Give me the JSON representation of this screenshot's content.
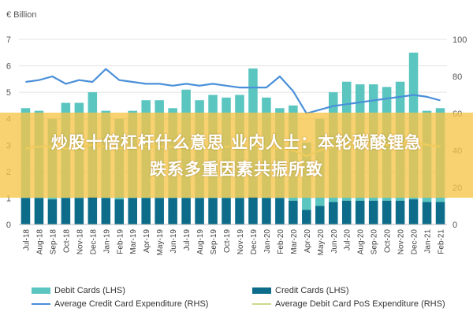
{
  "chart_data": {
    "type": "bar",
    "unit_label": "€ Billion",
    "ylim_left": [
      0,
      7
    ],
    "ylim_right": [
      0,
      100
    ],
    "left_ticks": [
      "0",
      "1",
      "2",
      "3",
      "4",
      "5",
      "6",
      "7"
    ],
    "right_ticks": [
      "0",
      "20",
      "40",
      "60",
      "80",
      "100"
    ],
    "categories": [
      "Jul-18",
      "Aug-18",
      "Sep-18",
      "Oct-18",
      "Nov-18",
      "Dec-18",
      "Jan-19",
      "Feb-19",
      "Mar-19",
      "Apr-19",
      "May-19",
      "Jun-19",
      "Jul-19",
      "Aug-19",
      "Sep-19",
      "Oct-19",
      "Nov-19",
      "Dec-19",
      "Jan-20",
      "Feb-20",
      "Mar-20",
      "Apr-20",
      "May-20",
      "Jun-20",
      "Jul-20",
      "Aug-20",
      "Sep-20",
      "Oct-20",
      "Nov-20",
      "Dec-20",
      "Jan-21",
      "Feb-21"
    ],
    "series": [
      {
        "name": "Debit Cards (LHS)",
        "type": "bar",
        "axis": "left",
        "color": "#5bc6c0",
        "values": [
          4.4,
          4.3,
          4.0,
          4.6,
          4.6,
          5.0,
          4.3,
          4.0,
          4.3,
          4.7,
          4.7,
          4.4,
          5.1,
          4.7,
          4.9,
          4.8,
          4.9,
          5.9,
          4.8,
          4.4,
          4.5,
          3.1,
          4.0,
          5.0,
          5.4,
          5.3,
          5.3,
          5.2,
          5.4,
          6.5,
          4.3,
          4.4
        ]
      },
      {
        "name": "Credit Cards (LHS)",
        "type": "bar",
        "axis": "left",
        "color": "#0d6c8a",
        "values": [
          1.0,
          1.0,
          0.95,
          1.0,
          1.0,
          1.05,
          1.0,
          0.95,
          1.0,
          1.0,
          1.0,
          1.0,
          1.0,
          1.0,
          1.0,
          1.0,
          1.0,
          1.05,
          1.0,
          1.0,
          0.9,
          0.55,
          0.7,
          0.85,
          0.9,
          0.9,
          0.9,
          0.9,
          0.9,
          0.95,
          0.85,
          0.85
        ]
      },
      {
        "name": "Average Credit Card Expenditure (RHS)",
        "type": "line",
        "axis": "right",
        "color": "#4a90d9",
        "values": [
          77,
          78,
          80,
          76,
          78,
          77,
          84,
          78,
          77,
          76,
          76,
          75,
          76,
          75,
          76,
          75,
          74,
          74,
          74,
          80,
          72,
          60,
          62,
          64,
          65,
          66,
          67,
          68,
          69,
          70,
          69,
          67
        ]
      },
      {
        "name": "Average Debit Card PoS Expenditure (RHS)",
        "type": "line",
        "axis": "right",
        "color": "#d6e6a2",
        "values": [
          41,
          42,
          42,
          41,
          42,
          43,
          42,
          41,
          42,
          42,
          42,
          42,
          42,
          42,
          42,
          42,
          42,
          43,
          42,
          41,
          40,
          37,
          40,
          42,
          43,
          43,
          43,
          43,
          43,
          45,
          43,
          42
        ]
      }
    ],
    "grid": true,
    "legend_position": "bottom"
  },
  "overlay": {
    "line1": "炒股十倍杠杆什么意思 业内人士：本轮碳酸锂急",
    "line2": "跌系多重因素共振所致"
  }
}
